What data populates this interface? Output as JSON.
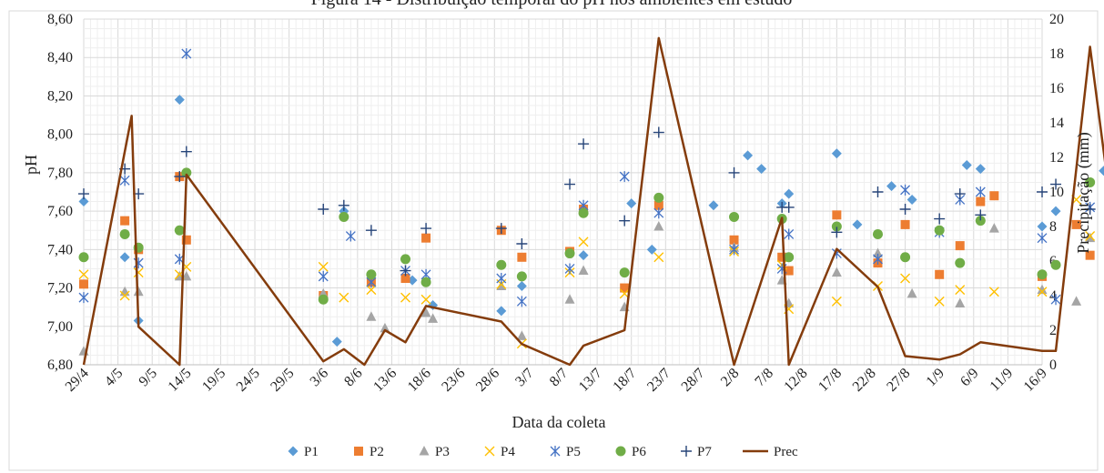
{
  "chart_data": {
    "type": "scatter",
    "title": "Figura 14 - Distribuição temporal do pH nos ambientes em estudo",
    "xlabel": "Data da coleta",
    "ylabel": "pH",
    "y2label": "Precipitação (mm)",
    "x_tick_labels": [
      "29/4",
      "4/5",
      "9/5",
      "14/5",
      "19/5",
      "24/5",
      "29/5",
      "3/6",
      "8/6",
      "13/6",
      "18/6",
      "23/6",
      "28/6",
      "3/7",
      "8/7",
      "13/7",
      "18/7",
      "23/7",
      "28/7",
      "2/8",
      "7/8",
      "12/8",
      "17/8",
      "22/8",
      "27/8",
      "1/9",
      "6/9",
      "11/9",
      "16/9"
    ],
    "ylim": [
      6.8,
      8.6
    ],
    "y_ticks": [
      "6,80",
      "7,00",
      "7,20",
      "7,40",
      "7,60",
      "7,80",
      "8,00",
      "8,20",
      "8,40",
      "8,60"
    ],
    "y2lim": [
      0,
      20
    ],
    "y2_ticks": [
      "0",
      "2",
      "4",
      "6",
      "8",
      "10",
      "12",
      "14",
      "16",
      "18",
      "20"
    ],
    "legend_position": "bottom",
    "grid": true,
    "series": [
      {
        "name": "P1",
        "marker": "diamond",
        "color": "#5b9bd5",
        "x": [
          0,
          6,
          8,
          14,
          37,
          38,
          48,
          51,
          61,
          64,
          71,
          73,
          80,
          83,
          92,
          97,
          99,
          102,
          103,
          110,
          113,
          118,
          121,
          129,
          131,
          140,
          142,
          149,
          155
        ],
        "y": [
          7.65,
          7.36,
          7.03,
          8.18,
          6.92,
          7.6,
          7.24,
          7.11,
          7.08,
          7.21,
          7.38,
          7.37,
          7.64,
          7.4,
          7.63,
          7.89,
          7.82,
          7.64,
          7.69,
          7.9,
          7.53,
          7.73,
          7.66,
          7.84,
          7.82,
          7.52,
          7.6,
          7.81,
          7.63
        ]
      },
      {
        "name": "P2",
        "marker": "square",
        "color": "#ed7d31",
        "x": [
          0,
          6,
          8,
          14,
          15,
          35,
          42,
          47,
          50,
          61,
          64,
          71,
          73,
          79,
          84,
          95,
          102,
          103,
          110,
          116,
          120,
          125,
          128,
          131,
          133,
          140,
          145,
          147,
          153,
          157
        ],
        "y": [
          7.22,
          7.55,
          7.4,
          7.78,
          7.45,
          7.16,
          7.23,
          7.25,
          7.46,
          7.5,
          7.36,
          7.39,
          7.61,
          7.2,
          7.63,
          7.45,
          7.36,
          7.29,
          7.58,
          7.33,
          7.53,
          7.27,
          7.42,
          7.65,
          7.68,
          7.26,
          7.53,
          7.37,
          7.4,
          7.43
        ]
      },
      {
        "name": "P3",
        "marker": "triangle",
        "color": "#a5a5a5",
        "x": [
          0,
          6,
          8,
          14,
          15,
          35,
          42,
          44,
          50,
          51,
          61,
          64,
          71,
          73,
          79,
          84,
          95,
          102,
          103,
          110,
          116,
          121,
          128,
          133,
          140,
          145,
          147,
          153,
          157
        ],
        "y": [
          6.87,
          7.18,
          7.18,
          7.26,
          7.26,
          7.17,
          7.05,
          6.99,
          7.07,
          7.04,
          7.21,
          6.95,
          7.14,
          7.29,
          7.1,
          7.52,
          7.41,
          7.24,
          7.12,
          7.28,
          7.38,
          7.17,
          7.12,
          7.51,
          7.19,
          7.13,
          7.46,
          7.32,
          7.32
        ]
      },
      {
        "name": "P4",
        "marker": "x",
        "color": "#ffc000",
        "x": [
          0,
          6,
          8,
          14,
          15,
          35,
          38,
          42,
          47,
          50,
          61,
          64,
          71,
          73,
          79,
          84,
          95,
          102,
          103,
          110,
          116,
          120,
          125,
          128,
          133,
          140,
          145,
          147,
          153
        ],
        "y": [
          7.27,
          7.16,
          7.28,
          7.27,
          7.31,
          7.31,
          7.15,
          7.19,
          7.15,
          7.14,
          7.22,
          6.91,
          7.28,
          7.44,
          7.17,
          7.36,
          7.39,
          7.32,
          7.09,
          7.13,
          7.21,
          7.25,
          7.13,
          7.19,
          7.18,
          7.18,
          7.66,
          7.47,
          7.33
        ]
      },
      {
        "name": "P5",
        "marker": "asterisk",
        "color": "#4472c4",
        "x": [
          0,
          6,
          8,
          14,
          15,
          35,
          39,
          42,
          47,
          50,
          61,
          64,
          71,
          73,
          79,
          84,
          95,
          102,
          103,
          110,
          116,
          120,
          125,
          128,
          131,
          140,
          142,
          147,
          150,
          157
        ],
        "y": [
          7.15,
          7.76,
          7.33,
          7.35,
          8.42,
          7.26,
          7.47,
          7.23,
          7.29,
          7.27,
          7.25,
          7.13,
          7.3,
          7.63,
          7.78,
          7.59,
          7.4,
          7.3,
          7.48,
          7.38,
          7.35,
          7.71,
          7.49,
          7.66,
          7.7,
          7.46,
          7.14,
          7.62,
          7.49,
          7.46
        ]
      },
      {
        "name": "P6",
        "marker": "circle",
        "color": "#70ad47",
        "x": [
          0,
          6,
          8,
          14,
          15,
          35,
          38,
          42,
          47,
          50,
          61,
          64,
          71,
          73,
          79,
          84,
          95,
          102,
          103,
          110,
          116,
          120,
          125,
          128,
          131,
          140,
          142,
          147,
          150,
          157
        ],
        "y": [
          7.36,
          7.48,
          7.41,
          7.5,
          7.8,
          7.14,
          7.57,
          7.27,
          7.35,
          7.23,
          7.32,
          7.26,
          7.38,
          7.59,
          7.28,
          7.67,
          7.57,
          7.56,
          7.36,
          7.52,
          7.48,
          7.36,
          7.5,
          7.33,
          7.55,
          7.27,
          7.32,
          7.75,
          7.6,
          7.52
        ]
      },
      {
        "name": "P7",
        "marker": "plus",
        "color": "#264478",
        "x": [
          0,
          6,
          8,
          14,
          15,
          35,
          38,
          42,
          47,
          50,
          61,
          64,
          71,
          73,
          79,
          84,
          95,
          102,
          103,
          110,
          116,
          120,
          125,
          128,
          131,
          140,
          142,
          147,
          150,
          157
        ],
        "y": [
          7.69,
          7.82,
          7.69,
          7.78,
          7.91,
          7.61,
          7.63,
          7.5,
          7.29,
          7.51,
          7.51,
          7.43,
          7.74,
          7.95,
          7.55,
          8.01,
          7.8,
          7.62,
          7.62,
          7.49,
          7.7,
          7.61,
          7.56,
          7.69,
          7.58,
          7.7,
          7.74,
          7.61,
          7.49,
          7.75
        ]
      },
      {
        "name": "Prec",
        "type": "line",
        "axis": "secondary",
        "color": "#843c0c",
        "x": [
          0,
          7,
          8,
          14,
          15,
          35,
          38,
          41,
          44,
          47,
          50,
          61,
          64,
          71,
          73,
          79,
          84,
          95,
          102,
          103,
          110,
          116,
          120,
          125,
          128,
          131,
          140,
          142,
          147,
          150,
          155
        ],
        "y": [
          0,
          14.4,
          2.2,
          0,
          11,
          0.2,
          0.9,
          0,
          2,
          1.3,
          3.4,
          2.5,
          1.2,
          0,
          1.1,
          2,
          18.9,
          0,
          8.5,
          0,
          6.7,
          4.5,
          0.5,
          0.3,
          0.6,
          1.3,
          0.8,
          0.8,
          18.4,
          9.3,
          7.6
        ]
      }
    ]
  }
}
